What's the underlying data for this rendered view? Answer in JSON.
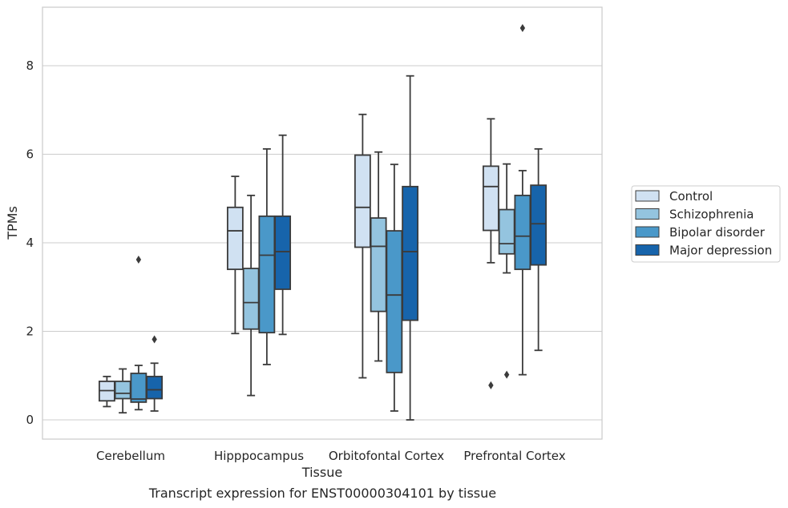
{
  "caption": "Transcript expression for ENST00000304101 by tissue",
  "chart_data": {
    "type": "boxplot",
    "xlabel": "Tissue",
    "ylabel": "TPMs",
    "ylim": [
      -0.4,
      9.3
    ],
    "yticks": [
      0,
      2,
      4,
      6,
      8
    ],
    "grid": "horizontal",
    "legend_position": "right",
    "categories": [
      "Cerebellum",
      "Hipppocampus",
      "Orbitofontal Cortex",
      "Prefrontal Cortex"
    ],
    "series": [
      {
        "name": "Control",
        "color": "#d0e1f2",
        "boxes": [
          {
            "whislo": 0.3,
            "q1": 0.43,
            "med": 0.66,
            "q3": 0.87,
            "whishi": 0.98,
            "fliers": []
          },
          {
            "whislo": 1.95,
            "q1": 3.4,
            "med": 4.27,
            "q3": 4.8,
            "whishi": 5.5,
            "fliers": []
          },
          {
            "whislo": 0.95,
            "q1": 3.9,
            "med": 4.8,
            "q3": 5.98,
            "whishi": 6.9,
            "fliers": []
          },
          {
            "whislo": 3.55,
            "q1": 4.28,
            "med": 5.27,
            "q3": 5.73,
            "whishi": 6.8,
            "fliers": [
              0.78
            ]
          }
        ]
      },
      {
        "name": "Schizophrenia",
        "color": "#94c4df",
        "boxes": [
          {
            "whislo": 0.16,
            "q1": 0.48,
            "med": 0.6,
            "q3": 0.87,
            "whishi": 1.15,
            "fliers": []
          },
          {
            "whislo": 0.55,
            "q1": 2.05,
            "med": 2.65,
            "q3": 3.42,
            "whishi": 5.07,
            "fliers": []
          },
          {
            "whislo": 1.33,
            "q1": 2.45,
            "med": 3.92,
            "q3": 4.56,
            "whishi": 6.05,
            "fliers": []
          },
          {
            "whislo": 3.32,
            "q1": 3.75,
            "med": 3.98,
            "q3": 4.75,
            "whishi": 5.78,
            "fliers": [
              1.02
            ]
          }
        ]
      },
      {
        "name": "Bipolar disorder",
        "color": "#4a98c9",
        "boxes": [
          {
            "whislo": 0.23,
            "q1": 0.4,
            "med": 0.47,
            "q3": 1.05,
            "whishi": 1.23,
            "fliers": [
              3.62
            ]
          },
          {
            "whislo": 1.25,
            "q1": 1.97,
            "med": 3.72,
            "q3": 4.6,
            "whishi": 6.12,
            "fliers": []
          },
          {
            "whislo": 0.2,
            "q1": 1.07,
            "med": 2.82,
            "q3": 4.27,
            "whishi": 5.77,
            "fliers": []
          },
          {
            "whislo": 1.02,
            "q1": 3.4,
            "med": 4.15,
            "q3": 5.07,
            "whishi": 5.63,
            "fliers": [
              8.85
            ]
          }
        ]
      },
      {
        "name": "Major depression",
        "color": "#1764ab",
        "boxes": [
          {
            "whislo": 0.2,
            "q1": 0.48,
            "med": 0.68,
            "q3": 0.98,
            "whishi": 1.28,
            "fliers": [
              1.82
            ]
          },
          {
            "whislo": 1.93,
            "q1": 2.95,
            "med": 3.8,
            "q3": 4.6,
            "whishi": 6.43,
            "fliers": []
          },
          {
            "whislo": 0.0,
            "q1": 2.25,
            "med": 3.8,
            "q3": 5.27,
            "whishi": 7.77,
            "fliers": []
          },
          {
            "whislo": 1.57,
            "q1": 3.5,
            "med": 4.43,
            "q3": 5.3,
            "whishi": 6.12,
            "fliers": []
          }
        ]
      }
    ]
  }
}
